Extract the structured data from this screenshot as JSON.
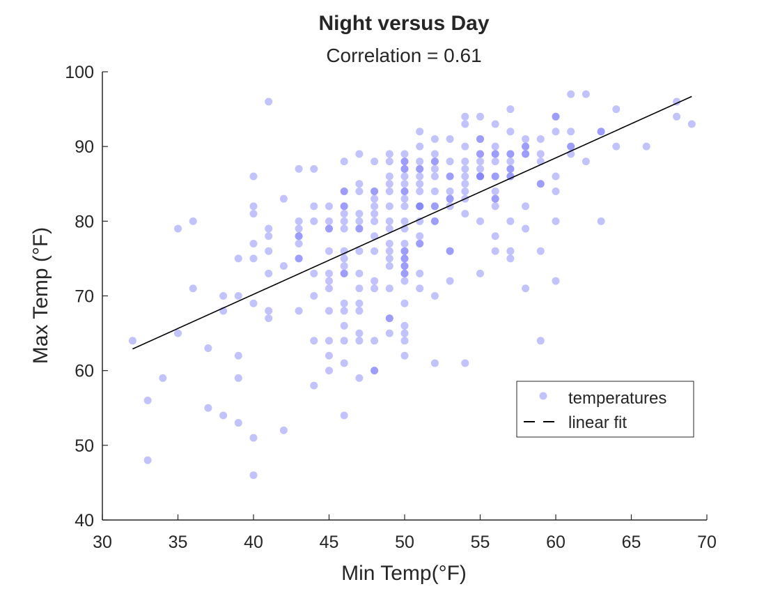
{
  "chart_data": {
    "type": "scatter",
    "title": "Night versus Day",
    "subtitle": "Correlation = 0.61",
    "xlabel": "Min Temp(°F)",
    "ylabel": "Max Temp (°F)",
    "xlim": [
      30,
      70
    ],
    "ylim": [
      40,
      100
    ],
    "xticks": [
      30,
      35,
      40,
      45,
      50,
      55,
      60,
      65,
      70
    ],
    "yticks": [
      40,
      50,
      60,
      70,
      80,
      90,
      100
    ],
    "grid": false,
    "legend_position": "lower-right",
    "series": [
      {
        "name": "temperatures",
        "kind": "scatter",
        "color": "#6666ff",
        "alpha": 0.4,
        "points": [
          [
            32,
            64
          ],
          [
            33,
            56
          ],
          [
            33,
            48
          ],
          [
            34,
            59
          ],
          [
            35,
            79
          ],
          [
            35,
            65
          ],
          [
            36,
            80
          ],
          [
            36,
            71
          ],
          [
            37,
            63
          ],
          [
            37,
            55
          ],
          [
            38,
            70
          ],
          [
            38,
            68
          ],
          [
            38,
            54
          ],
          [
            39,
            75
          ],
          [
            39,
            70
          ],
          [
            39,
            62
          ],
          [
            39,
            59
          ],
          [
            39,
            53
          ],
          [
            40,
            86
          ],
          [
            40,
            82
          ],
          [
            40,
            81
          ],
          [
            40,
            77
          ],
          [
            40,
            75
          ],
          [
            40,
            69
          ],
          [
            40,
            51
          ],
          [
            40,
            46
          ],
          [
            41,
            96
          ],
          [
            41,
            79
          ],
          [
            41,
            78
          ],
          [
            41,
            76
          ],
          [
            41,
            73
          ],
          [
            41,
            68
          ],
          [
            41,
            67
          ],
          [
            42,
            83
          ],
          [
            42,
            74
          ],
          [
            42,
            52
          ],
          [
            43,
            87
          ],
          [
            43,
            80
          ],
          [
            43,
            79
          ],
          [
            43,
            78
          ],
          [
            43,
            78
          ],
          [
            43,
            77
          ],
          [
            43,
            75
          ],
          [
            43,
            75
          ],
          [
            43,
            68
          ],
          [
            44,
            87
          ],
          [
            44,
            82
          ],
          [
            44,
            80
          ],
          [
            44,
            73
          ],
          [
            44,
            70
          ],
          [
            44,
            64
          ],
          [
            44,
            58
          ],
          [
            45,
            82
          ],
          [
            45,
            80
          ],
          [
            45,
            79
          ],
          [
            45,
            79
          ],
          [
            45,
            76
          ],
          [
            45,
            73
          ],
          [
            45,
            72
          ],
          [
            45,
            71
          ],
          [
            45,
            68
          ],
          [
            45,
            64
          ],
          [
            45,
            62
          ],
          [
            45,
            60
          ],
          [
            46,
            88
          ],
          [
            46,
            84
          ],
          [
            46,
            84
          ],
          [
            46,
            82
          ],
          [
            46,
            82
          ],
          [
            46,
            81
          ],
          [
            46,
            80
          ],
          [
            46,
            79
          ],
          [
            46,
            76
          ],
          [
            46,
            75
          ],
          [
            46,
            74
          ],
          [
            46,
            73
          ],
          [
            46,
            73
          ],
          [
            46,
            69
          ],
          [
            46,
            68
          ],
          [
            46,
            66
          ],
          [
            46,
            64
          ],
          [
            46,
            61
          ],
          [
            46,
            54
          ],
          [
            47,
            89
          ],
          [
            47,
            85
          ],
          [
            47,
            84
          ],
          [
            47,
            81
          ],
          [
            47,
            80
          ],
          [
            47,
            79
          ],
          [
            47,
            79
          ],
          [
            47,
            76
          ],
          [
            47,
            73
          ],
          [
            47,
            71
          ],
          [
            47,
            69
          ],
          [
            47,
            68
          ],
          [
            47,
            65
          ],
          [
            47,
            64
          ],
          [
            47,
            59
          ],
          [
            48,
            88
          ],
          [
            48,
            84
          ],
          [
            48,
            84
          ],
          [
            48,
            83
          ],
          [
            48,
            82
          ],
          [
            48,
            81
          ],
          [
            48,
            80
          ],
          [
            48,
            78
          ],
          [
            48,
            76
          ],
          [
            48,
            72
          ],
          [
            48,
            71
          ],
          [
            48,
            64
          ],
          [
            48,
            60
          ],
          [
            48,
            60
          ],
          [
            49,
            89
          ],
          [
            49,
            88
          ],
          [
            49,
            86
          ],
          [
            49,
            85
          ],
          [
            49,
            84
          ],
          [
            49,
            82
          ],
          [
            49,
            80
          ],
          [
            49,
            79
          ],
          [
            49,
            77
          ],
          [
            49,
            76
          ],
          [
            49,
            75
          ],
          [
            49,
            74
          ],
          [
            49,
            71
          ],
          [
            49,
            67
          ],
          [
            49,
            67
          ],
          [
            49,
            65
          ],
          [
            50,
            89
          ],
          [
            50,
            88
          ],
          [
            50,
            88
          ],
          [
            50,
            87
          ],
          [
            50,
            87
          ],
          [
            50,
            86
          ],
          [
            50,
            85
          ],
          [
            50,
            84
          ],
          [
            50,
            84
          ],
          [
            50,
            83
          ],
          [
            50,
            82
          ],
          [
            50,
            80
          ],
          [
            50,
            79
          ],
          [
            50,
            77
          ],
          [
            50,
            76
          ],
          [
            50,
            76
          ],
          [
            50,
            75
          ],
          [
            50,
            75
          ],
          [
            50,
            74
          ],
          [
            50,
            74
          ],
          [
            50,
            73
          ],
          [
            50,
            73
          ],
          [
            50,
            72
          ],
          [
            50,
            69
          ],
          [
            50,
            66
          ],
          [
            50,
            65
          ],
          [
            50,
            64
          ],
          [
            50,
            62
          ],
          [
            51,
            92
          ],
          [
            51,
            90
          ],
          [
            51,
            88
          ],
          [
            51,
            87
          ],
          [
            51,
            87
          ],
          [
            51,
            86
          ],
          [
            51,
            85
          ],
          [
            51,
            84
          ],
          [
            51,
            82
          ],
          [
            51,
            82
          ],
          [
            51,
            82
          ],
          [
            51,
            80
          ],
          [
            51,
            78
          ],
          [
            51,
            77
          ],
          [
            51,
            77
          ],
          [
            51,
            73
          ],
          [
            51,
            71
          ],
          [
            52,
            91
          ],
          [
            52,
            89
          ],
          [
            52,
            88
          ],
          [
            52,
            88
          ],
          [
            52,
            87
          ],
          [
            52,
            86
          ],
          [
            52,
            84
          ],
          [
            52,
            82
          ],
          [
            52,
            82
          ],
          [
            52,
            80
          ],
          [
            52,
            80
          ],
          [
            52,
            70
          ],
          [
            52,
            61
          ],
          [
            53,
            91
          ],
          [
            53,
            88
          ],
          [
            53,
            86
          ],
          [
            53,
            86
          ],
          [
            53,
            84
          ],
          [
            53,
            83
          ],
          [
            53,
            83
          ],
          [
            53,
            82
          ],
          [
            53,
            76
          ],
          [
            53,
            76
          ],
          [
            53,
            72
          ],
          [
            54,
            94
          ],
          [
            54,
            93
          ],
          [
            54,
            90
          ],
          [
            54,
            88
          ],
          [
            54,
            87
          ],
          [
            54,
            86
          ],
          [
            54,
            85
          ],
          [
            54,
            84
          ],
          [
            54,
            83
          ],
          [
            54,
            81
          ],
          [
            54,
            61
          ],
          [
            55,
            94
          ],
          [
            55,
            91
          ],
          [
            55,
            91
          ],
          [
            55,
            89
          ],
          [
            55,
            89
          ],
          [
            55,
            88
          ],
          [
            55,
            87
          ],
          [
            55,
            86
          ],
          [
            55,
            86
          ],
          [
            55,
            86
          ],
          [
            55,
            80
          ],
          [
            55,
            73
          ],
          [
            56,
            93
          ],
          [
            56,
            90
          ],
          [
            56,
            89
          ],
          [
            56,
            89
          ],
          [
            56,
            88
          ],
          [
            56,
            86
          ],
          [
            56,
            86
          ],
          [
            56,
            84
          ],
          [
            56,
            83
          ],
          [
            56,
            83
          ],
          [
            56,
            82
          ],
          [
            56,
            78
          ],
          [
            56,
            76
          ],
          [
            57,
            95
          ],
          [
            57,
            92
          ],
          [
            57,
            89
          ],
          [
            57,
            89
          ],
          [
            57,
            88
          ],
          [
            57,
            87
          ],
          [
            57,
            87
          ],
          [
            57,
            86
          ],
          [
            57,
            86
          ],
          [
            57,
            80
          ],
          [
            57,
            76
          ],
          [
            57,
            75
          ],
          [
            58,
            91
          ],
          [
            58,
            90
          ],
          [
            58,
            90
          ],
          [
            58,
            89
          ],
          [
            58,
            89
          ],
          [
            58,
            82
          ],
          [
            58,
            79
          ],
          [
            58,
            71
          ],
          [
            59,
            91
          ],
          [
            59,
            89
          ],
          [
            59,
            88
          ],
          [
            59,
            85
          ],
          [
            59,
            85
          ],
          [
            59,
            76
          ],
          [
            59,
            64
          ],
          [
            60,
            94
          ],
          [
            60,
            94
          ],
          [
            60,
            92
          ],
          [
            60,
            86
          ],
          [
            60,
            84
          ],
          [
            60,
            80
          ],
          [
            60,
            72
          ],
          [
            61,
            97
          ],
          [
            61,
            92
          ],
          [
            61,
            90
          ],
          [
            61,
            90
          ],
          [
            61,
            89
          ],
          [
            62,
            97
          ],
          [
            62,
            88
          ],
          [
            63,
            92
          ],
          [
            63,
            92
          ],
          [
            63,
            80
          ],
          [
            64,
            95
          ],
          [
            64,
            90
          ],
          [
            66,
            90
          ],
          [
            68,
            96
          ],
          [
            68,
            94
          ],
          [
            69,
            93
          ]
        ]
      },
      {
        "name": "linear fit",
        "kind": "line",
        "color": "#000000",
        "points": [
          [
            32,
            62.9
          ],
          [
            69,
            96.7
          ]
        ]
      }
    ]
  }
}
